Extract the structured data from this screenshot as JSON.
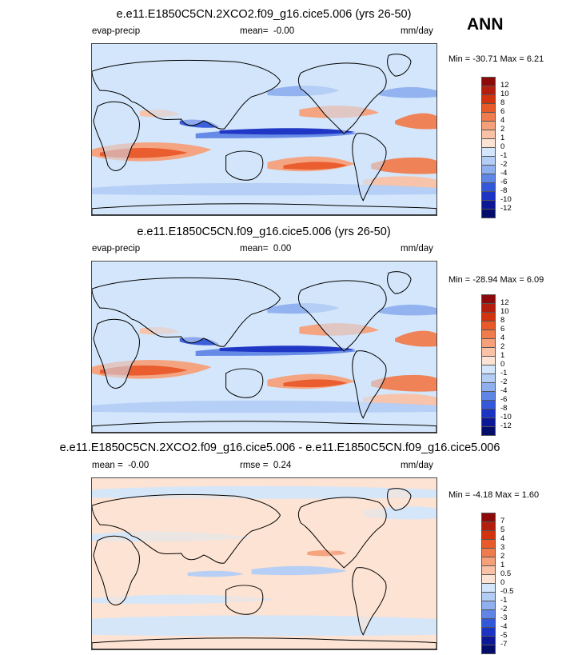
{
  "season": "ANN",
  "colors": {
    "land_base": "#cfe3fa",
    "ocean_base": "#d4e6fb",
    "diff_base": "#fde3d3",
    "coast": "#000000"
  },
  "panels": [
    {
      "title": "e.e11.E1850C5CN.2XCO2.f09_g16.cice5.006 (yrs 26-50)",
      "variable": "evap-precip",
      "mean_label": "mean=",
      "mean_value": "-0.00",
      "units": "mm/day",
      "minmax": "Min = -30.71 Max =   6.21"
    },
    {
      "title": "e.e11.E1850C5CN.f09_g16.cice5.006 (yrs 26-50)",
      "variable": "evap-precip",
      "mean_label": "mean=",
      "mean_value": "0.00",
      "units": "mm/day",
      "minmax": "Min = -28.94 Max =   6.09"
    },
    {
      "title": "e.e11.E1850C5CN.2XCO2.f09_g16.cice5.006 - e.e11.E1850C5CN.f09_g16.cice5.006",
      "mean_label": "mean =",
      "mean_value": "-0.00",
      "rmse_label": "rmse =",
      "rmse_value": "0.24",
      "units": "mm/day",
      "minmax": "Min =  -4.18 Max =   1.60"
    }
  ],
  "chart_data": [
    {
      "type": "heatmap",
      "title": "e.e11.E1850C5CN.2XCO2.f09_g16.cice5.006 (yrs 26-50)",
      "variable": "evap-precip",
      "units": "mm/day",
      "mean": -0.0,
      "min": -30.71,
      "max": 6.21,
      "colorbar": {
        "levels": [
          "12",
          "10",
          "8",
          "6",
          "4",
          "2",
          "1",
          "0",
          "-1",
          "-2",
          "-4",
          "-6",
          "-8",
          "-10",
          "-12"
        ],
        "colors": [
          "#8c0a0a",
          "#b41e0e",
          "#d2340f",
          "#e85a2a",
          "#f07c4e",
          "#f6a07a",
          "#f9c2a6",
          "#fde3d3",
          "#d4e6fb",
          "#b3cdf5",
          "#8eb0ee",
          "#5f86e6",
          "#3458da",
          "#1c33c4",
          "#0d1896",
          "#050d6a"
        ]
      }
    },
    {
      "type": "heatmap",
      "title": "e.e11.E1850C5CN.f09_g16.cice5.006 (yrs 26-50)",
      "variable": "evap-precip",
      "units": "mm/day",
      "mean": 0.0,
      "min": -28.94,
      "max": 6.09,
      "colorbar": {
        "levels": [
          "12",
          "10",
          "8",
          "6",
          "4",
          "2",
          "1",
          "0",
          "-1",
          "-2",
          "-4",
          "-6",
          "-8",
          "-10",
          "-12"
        ],
        "colors": [
          "#8c0a0a",
          "#b41e0e",
          "#d2340f",
          "#e85a2a",
          "#f07c4e",
          "#f6a07a",
          "#f9c2a6",
          "#fde3d3",
          "#d4e6fb",
          "#b3cdf5",
          "#8eb0ee",
          "#5f86e6",
          "#3458da",
          "#1c33c4",
          "#0d1896",
          "#050d6a"
        ]
      }
    },
    {
      "type": "heatmap",
      "title": "e.e11.E1850C5CN.2XCO2.f09_g16.cice5.006 - e.e11.E1850C5CN.f09_g16.cice5.006",
      "units": "mm/day",
      "mean": -0.0,
      "rmse": 0.24,
      "min": -4.18,
      "max": 1.6,
      "colorbar": {
        "levels": [
          "7",
          "5",
          "4",
          "3",
          "2",
          "1",
          "0.5",
          "0",
          "-0.5",
          "-1",
          "-2",
          "-3",
          "-4",
          "-5",
          "-7"
        ],
        "colors": [
          "#8c0a0a",
          "#b41e0e",
          "#d2340f",
          "#e85a2a",
          "#f07c4e",
          "#f6a07a",
          "#f9c2a6",
          "#fde3d3",
          "#d4e6fb",
          "#b3cdf5",
          "#8eb0ee",
          "#5f86e6",
          "#3458da",
          "#1c33c4",
          "#0d1896",
          "#050d6a"
        ]
      }
    }
  ]
}
